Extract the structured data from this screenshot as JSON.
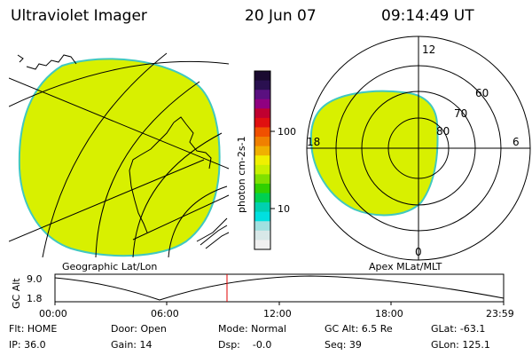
{
  "header": {
    "instrument": "Ultraviolet Imager",
    "date": "20 Jun 07",
    "time": "09:14:49 UT"
  },
  "colorbar": {
    "unit_label": "photon cm-2s-1",
    "ticks": [
      "100",
      "10"
    ],
    "colors": [
      "#1a0a30",
      "#2a1050",
      "#5a1080",
      "#900080",
      "#c00030",
      "#e01010",
      "#f05000",
      "#f08000",
      "#f0b000",
      "#f0f000",
      "#c8f000",
      "#80e000",
      "#30d000",
      "#00d050",
      "#00d0b0",
      "#00e0e0",
      "#a0e0e0",
      "#d8e8e8",
      "#f0f0f0"
    ]
  },
  "geographic_panel": {
    "caption": "Geographic Lat/Lon",
    "fill_color": "#d8f000"
  },
  "polar_panel": {
    "caption": "Apex MLat/MLT",
    "mlt_labels": [
      "12",
      "18",
      "6",
      "0"
    ],
    "mlat_labels": [
      "60",
      "70",
      "80"
    ],
    "fill_color": "#d8f000"
  },
  "altitude_plot": {
    "ylabel": "GC Alt",
    "yticks": [
      "9.0",
      "1.8"
    ],
    "xticks": [
      "00:00",
      "06:00",
      "12:00",
      "18:00",
      "23:59"
    ],
    "marker_color": "#e00000"
  },
  "status": {
    "flt": "Flt: HOME",
    "ip": "IP: 36.0",
    "door": "Door: Open",
    "gain": "Gain: 14",
    "mode": "Mode: Normal",
    "dsp": "Dsp:    -0.0",
    "gc_alt": "GC Alt: 6.5 Re",
    "seq": "Seq: 39",
    "glat": "GLat: -63.1",
    "glon": "GLon: 125.1"
  }
}
